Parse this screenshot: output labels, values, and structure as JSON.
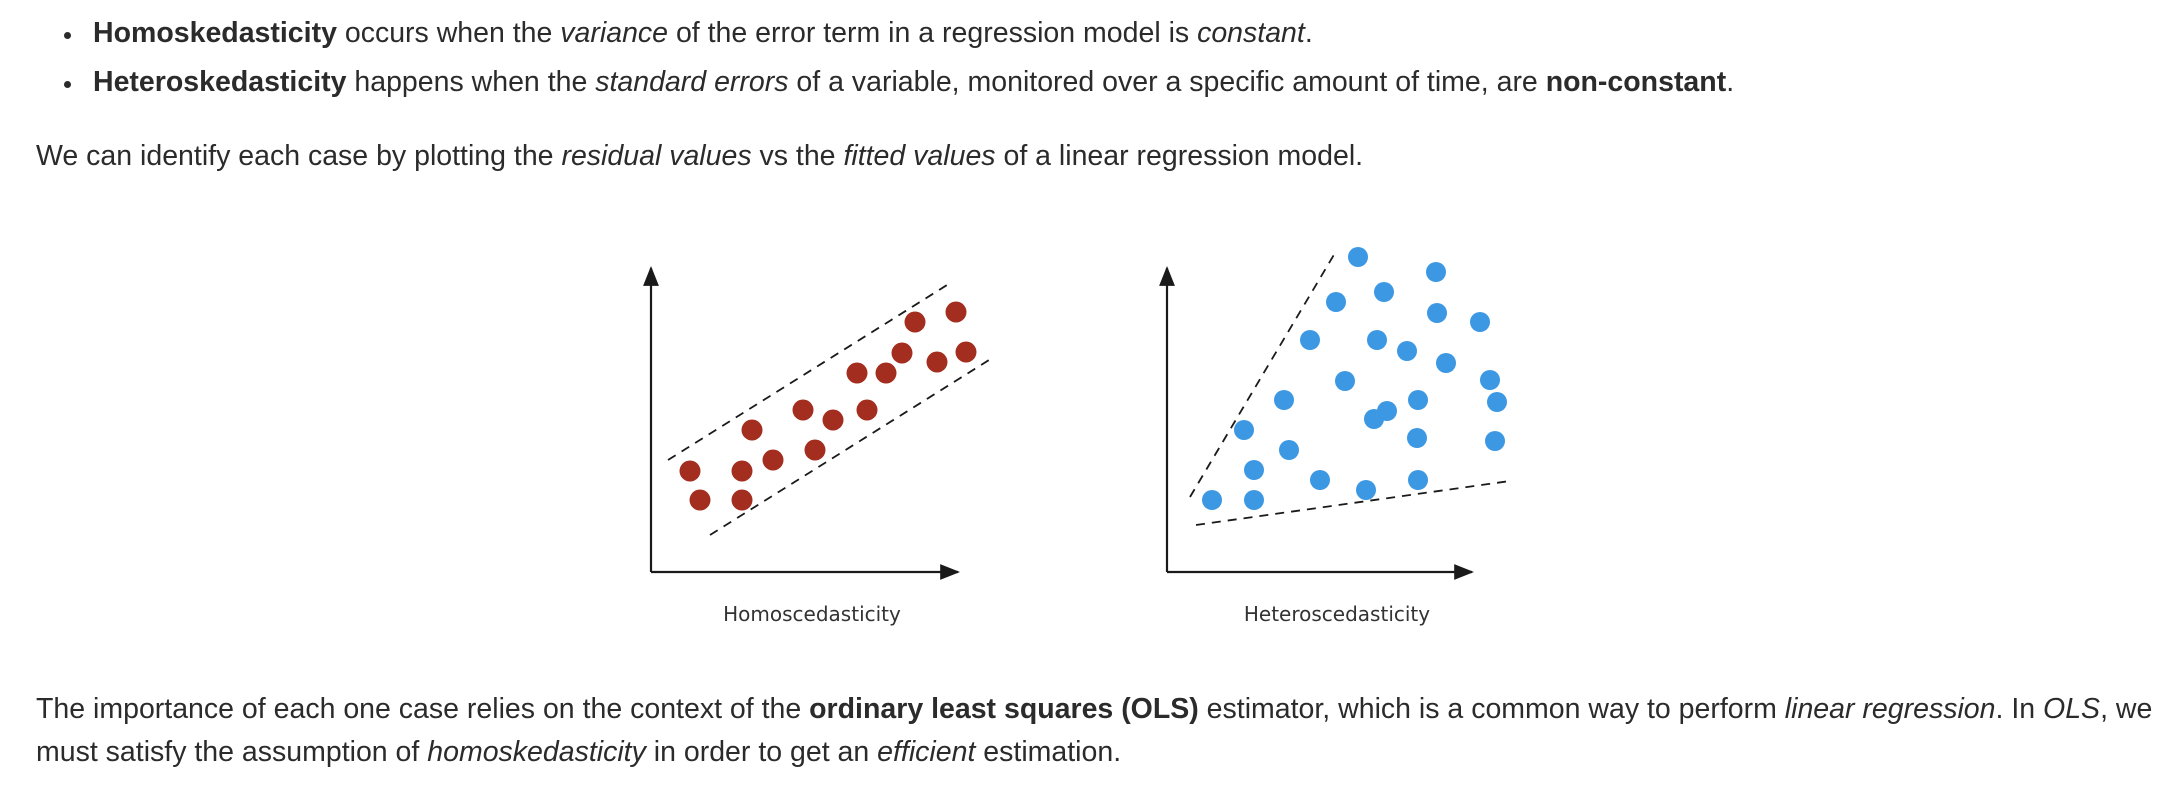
{
  "bullets": [
    {
      "term": "Homoskedasticity",
      "text_a": " occurs when the ",
      "em_a": "variance",
      "text_b": " of the error term in a regression model is ",
      "em_b": "constant",
      "text_c": "."
    },
    {
      "term": "Heteroskedasticity",
      "text_a": " happens when the ",
      "em_a": "standard errors",
      "text_b": " of a variable, monitored over a specific amount of time, are ",
      "strong_b": "non-constant",
      "text_c": "."
    }
  ],
  "intro": {
    "text_a": "We can identify each case by plotting the ",
    "em_a": "residual values",
    "text_b": " vs the ",
    "em_b": "fitted values",
    "text_c": " of a linear regression model."
  },
  "figure": {
    "homo": {
      "caption": "Homoscedasticity",
      "color": "#a32d1f"
    },
    "hetero": {
      "caption": "Heteroscedasticity",
      "color": "#3d98e3"
    }
  },
  "outro": {
    "line1_a": "The importance of each one case relies on the context of the ",
    "line1_strong": "ordinary least squares (OLS)",
    "line1_b": " estimator, which is a common way to perform ",
    "line1_em": "linear regression",
    "line1_c": ". In ",
    "line1_em2": "OLS",
    "line1_d": ", we",
    "line2_a": "must satisfy the assumption of ",
    "line2_em": "homoskedasticity",
    "line2_b": " in order to get an ",
    "line2_em2": "efficient",
    "line2_c": " estimation."
  }
}
